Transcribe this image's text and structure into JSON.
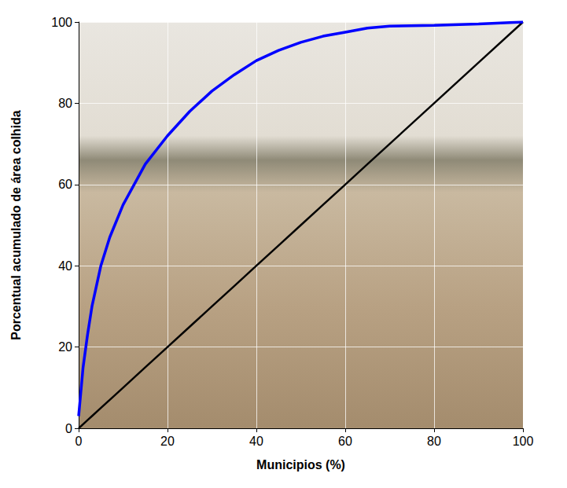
{
  "chart_data": {
    "type": "line",
    "x_label": "Municipios (%)",
    "y_label": "Porcentual acumulado de área colhida",
    "x": [
      0,
      1,
      2,
      3,
      5,
      7,
      10,
      15,
      20,
      25,
      30,
      35,
      40,
      45,
      50,
      55,
      60,
      65,
      70,
      80,
      90,
      100
    ],
    "series": [
      {
        "color": "#0000ff",
        "values": [
          3,
          15,
          23,
          30,
          40,
          47,
          55,
          65,
          72,
          78,
          83,
          87,
          90.5,
          93,
          95,
          96.5,
          97.5,
          98.5,
          99,
          99.2,
          99.5,
          100
        ]
      },
      {
        "color": "#000000",
        "values": [
          0,
          1,
          2,
          3,
          5,
          7,
          10,
          15,
          20,
          25,
          30,
          35,
          40,
          45,
          50,
          55,
          60,
          65,
          70,
          80,
          90,
          100
        ]
      }
    ],
    "xlim": [
      0,
      100
    ],
    "xticks": [
      0,
      20,
      40,
      60,
      80,
      100
    ],
    "ylim": [
      0,
      100
    ],
    "yticks": [
      0,
      20,
      40,
      60,
      80,
      100
    ],
    "grid": true
  }
}
